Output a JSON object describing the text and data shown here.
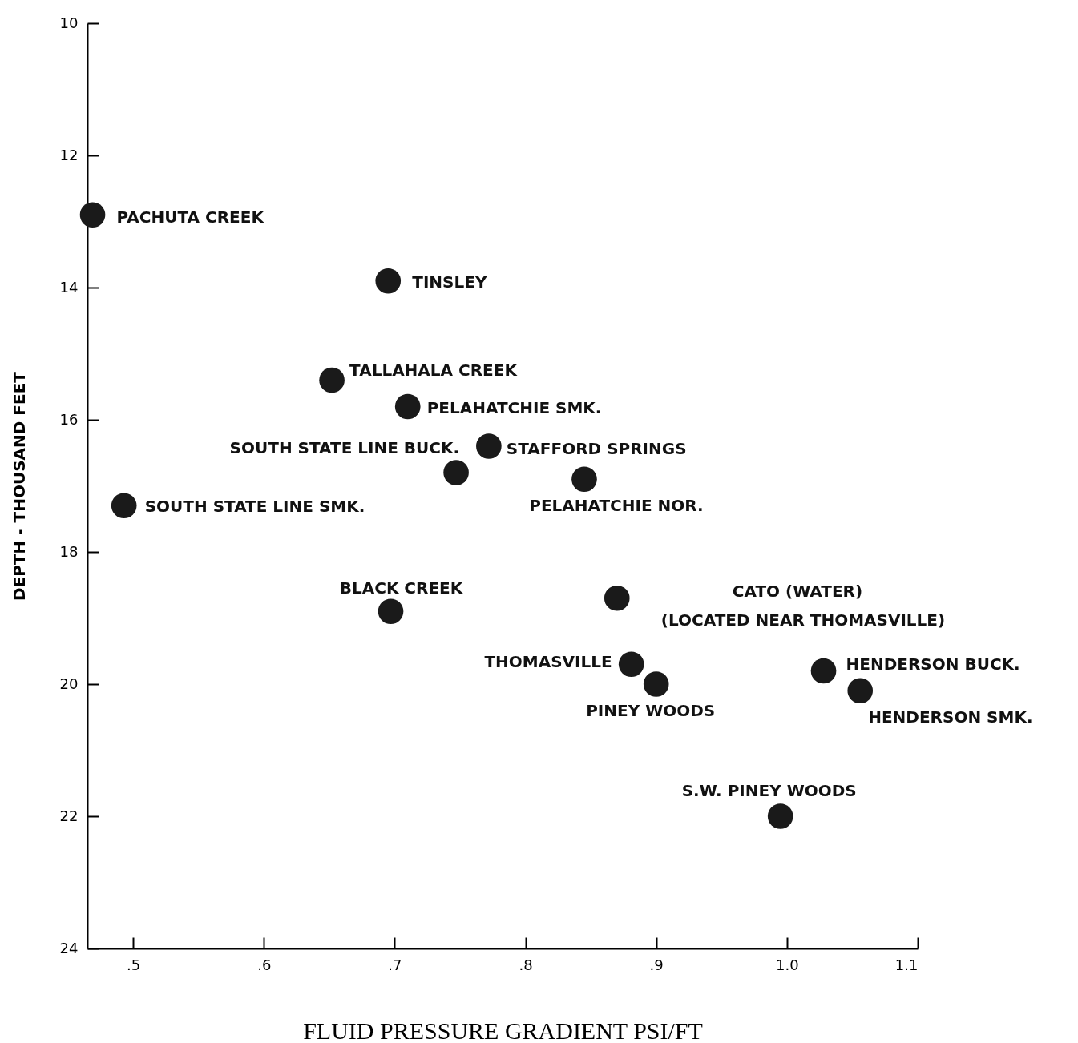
{
  "chart_data": {
    "type": "scatter",
    "xlabel": "FLUID PRESSURE GRADIENT PSI/FT",
    "ylabel": "DEPTH - THOUSAND FEET",
    "x": [
      0.469,
      0.695,
      0.652,
      0.71,
      0.747,
      0.772,
      0.845,
      0.493,
      0.697,
      0.87,
      0.881,
      0.9,
      1.028,
      1.056,
      0.995
    ],
    "series": [
      {
        "color": "#1a1a1a",
        "values": [
          12.9,
          13.9,
          15.4,
          15.8,
          16.8,
          16.4,
          16.9,
          17.3,
          18.9,
          18.7,
          19.7,
          20.0,
          19.8,
          20.1,
          22.0
        ]
      }
    ],
    "xlim": [
      0.465,
      1.1
    ],
    "ylim": [
      24,
      10
    ],
    "xticks": [
      {
        "value": 0.5,
        "label": ".5"
      },
      {
        "value": 0.6,
        "label": ".6"
      },
      {
        "value": 0.7,
        "label": ".7"
      },
      {
        "value": 0.8,
        "label": ".8"
      },
      {
        "value": 0.9,
        "label": ".9"
      },
      {
        "value": 1.0,
        "label": "1.0"
      },
      {
        "value": 1.1,
        "label": "1.1"
      }
    ],
    "yticks": [
      10,
      12,
      14,
      16,
      18,
      20,
      22,
      24
    ],
    "grid": false,
    "marker": "circle",
    "annotations": [
      {
        "text": "PACHUTA CREEK",
        "x": 0.469,
        "y": 12.9
      },
      {
        "text": "TINSLEY",
        "x": 0.695,
        "y": 13.9
      },
      {
        "text": "TALLAHALA CREEK",
        "x": 0.652,
        "y": 15.4
      },
      {
        "text": "PELAHATCHIE SMK.",
        "x": 0.71,
        "y": 15.8
      },
      {
        "text": "SOUTH STATE LINE BUCK.",
        "x": 0.747,
        "y": 16.8
      },
      {
        "text": "STAFFORD SPRINGS",
        "x": 0.772,
        "y": 16.4
      },
      {
        "text": "PELAHATCHIE NOR.",
        "x": 0.845,
        "y": 16.9
      },
      {
        "text": "SOUTH STATE LINE SMK.",
        "x": 0.493,
        "y": 17.3
      },
      {
        "text": "BLACK CREEK",
        "x": 0.697,
        "y": 18.9
      },
      "CATO (WATER)",
      "(LOCATED NEAR THOMASVILLE)",
      {
        "text": "THOMASVILLE",
        "x": 0.881,
        "y": 19.7
      },
      {
        "text": "PINEY WOODS",
        "x": 0.9,
        "y": 20.0
      },
      {
        "text": "HENDERSON BUCK.",
        "x": 1.028,
        "y": 19.8
      },
      {
        "text": "HENDERSON SMK.",
        "x": 1.056,
        "y": 20.1
      },
      {
        "text": "S.W. PINEY WOODS",
        "x": 0.995,
        "y": 22.0
      }
    ]
  }
}
